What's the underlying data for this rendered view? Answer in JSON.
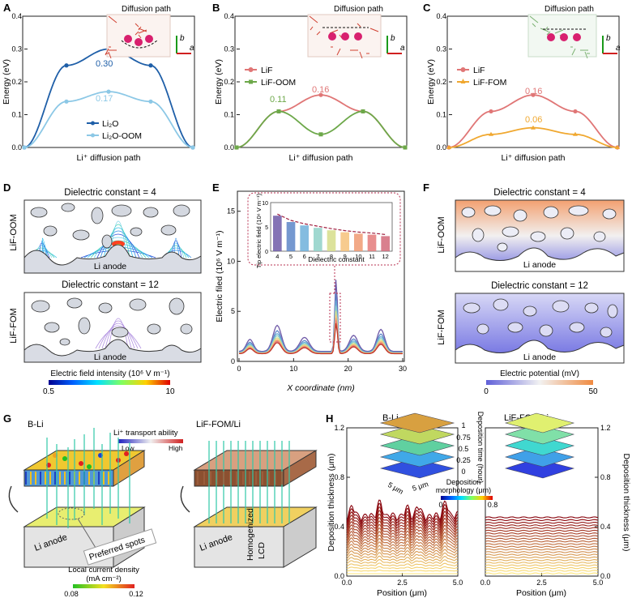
{
  "panels": {
    "A": {
      "letter": "A",
      "inset_title": "Diffusion path",
      "inset_axis_b": "b",
      "inset_axis_a": "a",
      "xlabel": "Li⁺ diffusion path",
      "ylabel": "Energy (eV)",
      "ylim": [
        0,
        0.4
      ],
      "yticks": [
        "0.0",
        "0.1",
        "0.2",
        "0.3",
        "0.4"
      ],
      "legend": [
        "Li₂O",
        "Li₂O-OOM"
      ],
      "annotations": [
        "0.30",
        "0.17"
      ]
    },
    "B": {
      "letter": "B",
      "inset_title": "Diffusion path",
      "inset_axis_b": "b",
      "inset_axis_a": "a",
      "xlabel": "Li⁺ diffusion path",
      "ylabel": "Energy (eV)",
      "ylim": [
        0,
        0.4
      ],
      "yticks": [
        "0.0",
        "0.1",
        "0.2",
        "0.3",
        "0.4"
      ],
      "legend": [
        "LiF",
        "LiF-OOM"
      ],
      "annotations": [
        "0.11",
        "0.16"
      ]
    },
    "C": {
      "letter": "C",
      "inset_title": "Diffusion path",
      "inset_axis_b": "b",
      "inset_axis_a": "a",
      "xlabel": "Li⁺ diffusion path",
      "ylabel": "Energy (eV)",
      "ylim": [
        0,
        0.4
      ],
      "yticks": [
        "0.0",
        "0.1",
        "0.2",
        "0.3",
        "0.4"
      ],
      "legend": [
        "LiF",
        "LiF-FOM"
      ],
      "annotations": [
        "0.16",
        "0.06"
      ]
    },
    "D": {
      "letter": "D",
      "title_top": "Dielectric constant = 4",
      "title_bottom": "Dielectric constant = 12",
      "side_top": "LiF-OOM",
      "side_bottom": "LiF-FOM",
      "anode": "Li anode",
      "colorbar_label": "Electric field intensity (10⁶ V m⁻¹)",
      "colorbar_min": "0.5",
      "colorbar_max": "10"
    },
    "E": {
      "letter": "E",
      "ylabel": "Electric filed (10⁶ V m⁻¹)",
      "xlabel": "X coordinate (nm)",
      "xticks": [
        "0",
        "10",
        "20",
        "30"
      ],
      "yticks": [
        "0",
        "5",
        "10",
        "15"
      ],
      "inset_ylabel": "Tip electric field (10⁶ V m⁻¹)",
      "inset_xlabel": "Dielectric constant",
      "inset_yticks": [
        "0",
        "5",
        "10"
      ]
    },
    "F": {
      "letter": "F",
      "title_top": "Dielectric constant = 4",
      "title_bottom": "Dielectric constant = 12",
      "side_top": "LiF-OOM",
      "side_bottom": "LiF-FOM",
      "anode": "Li anode",
      "colorbar_label": "Electric potential (mV)",
      "colorbar_min": "0",
      "colorbar_max": "50"
    },
    "G": {
      "letter": "G",
      "left_title": "B-Li",
      "right_title": "LiF-FOM/Li",
      "transport_label": "Li⁺ transport ability",
      "low": "Low",
      "high": "High",
      "anode_left": "Li anode",
      "spots": "Preferred spots",
      "anode_right": "Li anode",
      "homog1": "Homogenized",
      "homog2": "LCD",
      "cd_label1": "Local current density",
      "cd_label2": "(mA cm⁻²)",
      "cd_min": "0.08",
      "cd_max": "0.12"
    },
    "H": {
      "letter": "H",
      "left_title": "B-Li",
      "right_title": "LiF-FOM/Li",
      "ylabel": "Deposition thickness (μm)",
      "xlabel": "Position (μm)",
      "xticks": [
        "0.0",
        "2.5",
        "5.0"
      ],
      "yticks": [
        "0.0",
        "0.4",
        "0.8",
        "1.2"
      ],
      "time_label": "Deposition time (hour)",
      "time_ticks": [
        "1",
        "0.75",
        "0.5",
        "0.25",
        "0"
      ],
      "dim1": "5 μm",
      "dim2": "5 μm",
      "morph_label1": "Deposition",
      "morph_label2": "morphology (μm)",
      "morph_min": "0",
      "morph_max": "0.8"
    }
  },
  "chart_data": [
    {
      "panel": "A",
      "type": "line",
      "xlabel": "Li⁺ diffusion path",
      "ylabel": "Energy (eV)",
      "ylim": [
        0,
        0.4
      ],
      "x": [
        0,
        0.25,
        0.5,
        0.75,
        1
      ],
      "series": [
        {
          "name": "Li₂O",
          "color": "#1f5fa8",
          "values": [
            0.0,
            0.25,
            0.3,
            0.25,
            0.0
          ]
        },
        {
          "name": "Li₂O-OOM",
          "color": "#8cc8e6",
          "values": [
            0.0,
            0.14,
            0.17,
            0.14,
            0.0
          ]
        }
      ]
    },
    {
      "panel": "B",
      "type": "line",
      "xlabel": "Li⁺ diffusion path",
      "ylabel": "Energy (eV)",
      "ylim": [
        0,
        0.4
      ],
      "x": [
        0,
        0.25,
        0.5,
        0.75,
        1
      ],
      "series": [
        {
          "name": "LiF",
          "color": "#e07676",
          "values": [
            0.0,
            0.11,
            0.16,
            0.11,
            0.0
          ]
        },
        {
          "name": "LiF-OOM",
          "color": "#6da84a",
          "values": [
            0.0,
            0.11,
            0.04,
            0.11,
            0.0
          ]
        }
      ]
    },
    {
      "panel": "C",
      "type": "line",
      "xlabel": "Li⁺ diffusion path",
      "ylabel": "Energy (eV)",
      "ylim": [
        0,
        0.4
      ],
      "x": [
        0,
        0.25,
        0.5,
        0.75,
        1
      ],
      "series": [
        {
          "name": "LiF",
          "color": "#e07676",
          "values": [
            0.0,
            0.11,
            0.16,
            0.11,
            0.0
          ]
        },
        {
          "name": "LiF-FOM",
          "color": "#f0a830",
          "values": [
            0.0,
            0.04,
            0.06,
            0.04,
            0.0
          ]
        }
      ]
    },
    {
      "panel": "E-inset",
      "type": "bar",
      "xlabel": "Dielectric constant",
      "ylabel": "Tip electric field (10⁶ V m⁻¹)",
      "ylim": [
        0,
        10
      ],
      "categories": [
        "4",
        "5",
        "6",
        "7",
        "8",
        "9",
        "10",
        "11",
        "12"
      ],
      "values": [
        7.3,
        6.0,
        5.3,
        4.8,
        4.3,
        3.9,
        3.6,
        3.4,
        3.1
      ],
      "colors": [
        "#6f5aa8",
        "#5d86c8",
        "#6fb0da",
        "#8fd1c8",
        "#d6dd8a",
        "#f6c27a",
        "#f09a72",
        "#e47a7a",
        "#d26a7a"
      ]
    },
    {
      "panel": "E",
      "type": "line",
      "xlabel": "X coordinate (nm)",
      "ylabel": "Electric filed (10⁶ V m⁻¹)",
      "xlim": [
        0,
        30
      ],
      "ylim": [
        0,
        17
      ],
      "series_note_values": [
        7.3,
        6.0,
        5.3,
        4.8,
        4.3,
        3.9,
        3.6,
        3.4,
        3.1
      ],
      "series_colors": [
        "#6f5aa8",
        "#5d86c8",
        "#6fb0da",
        "#8fd1c8",
        "#d6dd8a",
        "#f6c27a",
        "#f09a72",
        "#e47a7a",
        "#c0392b"
      ]
    },
    {
      "panel": "H",
      "type": "line",
      "xlabel": "Position (μm)",
      "ylabel": "Deposition thickness (μm)",
      "xlim": [
        0,
        5
      ],
      "ylim": [
        0,
        1.2
      ]
    }
  ]
}
